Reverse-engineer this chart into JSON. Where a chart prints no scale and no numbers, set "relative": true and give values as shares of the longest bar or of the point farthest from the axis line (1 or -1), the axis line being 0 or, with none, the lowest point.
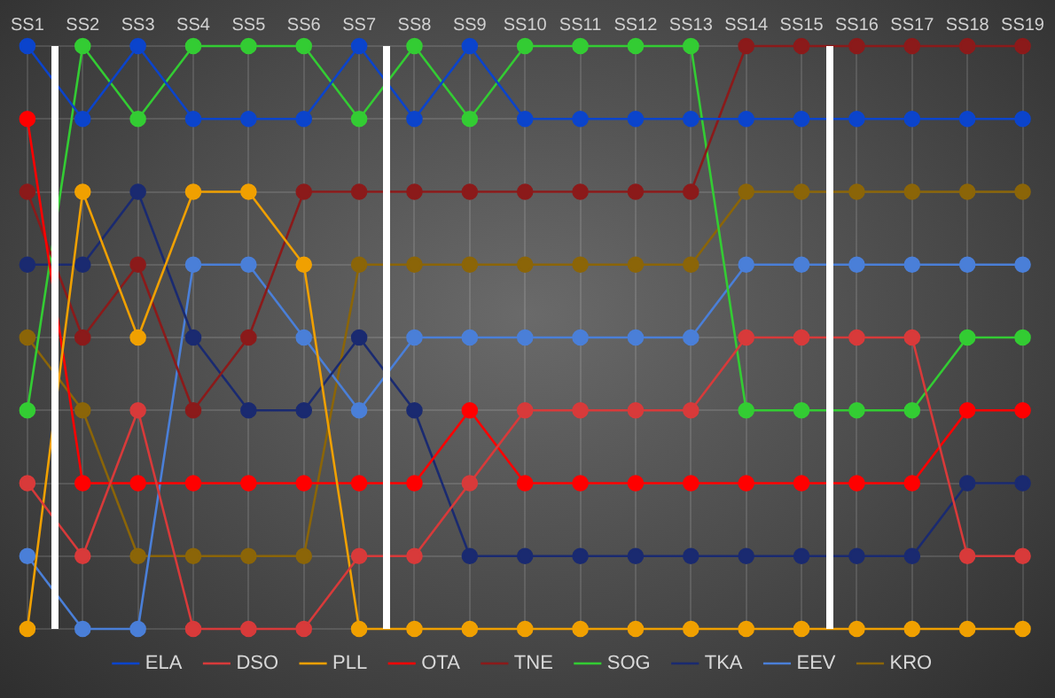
{
  "chart_data": {
    "type": "line",
    "relative": true,
    "grid": true,
    "legend": "bottom",
    "marker": "circle",
    "line_style": "solid",
    "categories": [
      "SS1",
      "SS2",
      "SS3",
      "SS4",
      "SS5",
      "SS6",
      "SS7",
      "SS8",
      "SS9",
      "SS10",
      "SS11",
      "SS12",
      "SS13",
      "SS14",
      "SS15",
      "SS16",
      "SS17",
      "SS18",
      "SS19"
    ],
    "series": [
      {
        "name": "ELA",
        "color": "#0b44cc",
        "values": [
          1,
          0.875,
          1,
          0.875,
          0.875,
          0.875,
          1,
          0.875,
          1,
          0.875,
          0.875,
          0.875,
          0.875,
          0.875,
          0.875,
          0.875,
          0.875,
          0.875,
          0.875
        ]
      },
      {
        "name": "DSO",
        "color": "#d83a3a",
        "values": [
          0.25,
          0.125,
          0.375,
          0,
          0,
          0,
          0.125,
          0.125,
          0.25,
          0.375,
          0.375,
          0.375,
          0.375,
          0.5,
          0.5,
          0.5,
          0.5,
          0.125,
          0.125
        ]
      },
      {
        "name": "PLL",
        "color": "#f0a000",
        "values": [
          0,
          0.75,
          0.5,
          0.75,
          0.75,
          0.625,
          0,
          0,
          0,
          0,
          0,
          0,
          0,
          0,
          0,
          0,
          0,
          0,
          0
        ]
      },
      {
        "name": "OTA",
        "color": "#ff0000",
        "values": [
          0.875,
          0.25,
          0.25,
          0.25,
          0.25,
          0.25,
          0.25,
          0.25,
          0.375,
          0.25,
          0.25,
          0.25,
          0.25,
          0.25,
          0.25,
          0.25,
          0.25,
          0.375,
          0.375
        ]
      },
      {
        "name": "TNE",
        "color": "#8b1a1a",
        "values": [
          0.75,
          0.5,
          0.625,
          0.375,
          0.5,
          0.75,
          0.75,
          0.75,
          0.75,
          0.75,
          0.75,
          0.75,
          0.75,
          1,
          1,
          1,
          1,
          1,
          1
        ]
      },
      {
        "name": "SOG",
        "color": "#33cc33",
        "values": [
          0.375,
          1,
          0.875,
          1,
          1,
          1,
          0.875,
          1,
          0.875,
          1,
          1,
          1,
          1,
          0.375,
          0.375,
          0.375,
          0.375,
          0.5,
          0.5
        ]
      },
      {
        "name": "TKA",
        "color": "#1a2a70",
        "values": [
          0.625,
          0.625,
          0.75,
          0.5,
          0.375,
          0.375,
          0.5,
          0.375,
          0.125,
          0.125,
          0.125,
          0.125,
          0.125,
          0.125,
          0.125,
          0.125,
          0.125,
          0.25,
          0.25
        ]
      },
      {
        "name": "EEV",
        "color": "#4a7fd8",
        "values": [
          0.125,
          0,
          0,
          0.625,
          0.625,
          0.5,
          0.375,
          0.5,
          0.5,
          0.5,
          0.5,
          0.5,
          0.5,
          0.625,
          0.625,
          0.625,
          0.625,
          0.625,
          0.625
        ]
      },
      {
        "name": "KRO",
        "color": "#8b6508",
        "values": [
          0.5,
          0.375,
          0.125,
          0.125,
          0.125,
          0.125,
          0.625,
          0.625,
          0.625,
          0.625,
          0.625,
          0.625,
          0.625,
          0.75,
          0.75,
          0.75,
          0.75,
          0.75,
          0.75
        ]
      }
    ]
  }
}
